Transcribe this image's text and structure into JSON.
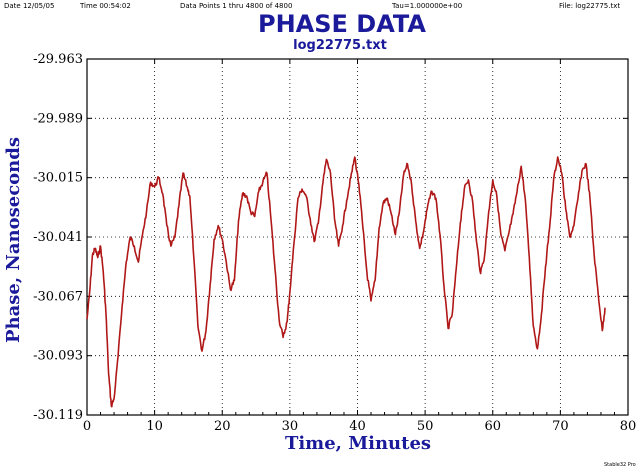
{
  "header": {
    "date": "Date  12/05/05",
    "time": "Time  00:54:02",
    "points": "Data Points 1 thru 4800 of 4800",
    "tau": "Tau=1.000000e+00",
    "file": "File: log22775.txt"
  },
  "credit": "Stable32 Pro",
  "chart_data": {
    "type": "line",
    "title": "PHASE DATA",
    "subtitle": "log22775.txt",
    "xlabel": "Time, Minutes",
    "ylabel": "Phase, Nanoseconds",
    "xlim": [
      0,
      80
    ],
    "ylim": [
      -30.119,
      -29.963
    ],
    "xticks": [
      "0",
      "10",
      "20",
      "30",
      "40",
      "50",
      "60",
      "70",
      "80"
    ],
    "yticks": [
      "-29.963",
      "-29.989",
      "-30.015",
      "-30.041",
      "-30.067",
      "-30.093",
      "-30.119"
    ],
    "grid": true,
    "line_color": "#b01818",
    "series": [
      {
        "x": [
          0.0,
          0.4,
          0.8,
          1.2,
          1.6,
          2.0,
          2.4,
          2.8,
          3.2,
          3.6,
          4.0,
          4.6,
          5.2,
          5.8,
          6.4,
          7.0,
          7.6,
          8.2,
          8.8,
          9.4,
          10.0,
          10.6,
          11.2,
          11.8,
          12.4,
          13.0,
          13.6,
          14.2,
          14.8,
          15.2,
          15.8,
          16.4,
          17.0,
          17.6,
          18.2,
          18.8,
          19.4,
          20.0,
          20.6,
          21.2,
          21.8,
          22.4,
          23.0,
          23.6,
          24.2,
          24.8,
          25.4,
          26.0,
          26.6,
          27.2,
          27.8,
          28.4,
          29.0,
          29.6,
          30.0,
          30.6,
          31.2,
          31.8,
          32.4,
          33.0,
          33.6,
          34.2,
          34.8,
          35.4,
          36.0,
          36.6,
          37.2,
          37.8,
          38.4,
          39.0,
          39.6,
          40.2,
          40.8,
          41.4,
          42.0,
          42.6,
          43.2,
          43.8,
          44.4,
          45.0,
          45.6,
          46.2,
          46.8,
          47.4,
          48.0,
          48.6,
          49.2,
          49.8,
          50.4,
          51.0,
          51.6,
          52.2,
          52.8,
          53.4,
          54.0,
          54.6,
          55.2,
          55.8,
          56.4,
          57.0,
          57.6,
          58.2,
          58.8,
          59.4,
          60.0,
          60.6,
          61.2,
          61.8,
          62.4,
          63.0,
          63.6,
          64.2,
          64.8,
          65.4,
          66.0,
          66.6,
          67.2,
          67.8,
          68.4,
          69.0,
          69.6,
          70.2,
          70.8,
          71.4,
          72.0,
          72.6,
          73.2,
          73.8,
          74.4,
          75.0,
          75.6,
          76.2,
          76.6
        ],
        "y": [
          -30.077,
          -30.065,
          -30.049,
          -30.046,
          -30.05,
          -30.045,
          -30.056,
          -30.074,
          -30.101,
          -30.115,
          -30.112,
          -30.093,
          -30.071,
          -30.052,
          -30.041,
          -30.045,
          -30.052,
          -30.04,
          -30.03,
          -30.017,
          -30.019,
          -30.015,
          -30.022,
          -30.036,
          -30.045,
          -30.041,
          -30.027,
          -30.013,
          -30.019,
          -30.023,
          -30.05,
          -30.08,
          -30.091,
          -30.082,
          -30.062,
          -30.042,
          -30.036,
          -30.042,
          -30.052,
          -30.064,
          -30.06,
          -30.034,
          -30.022,
          -30.023,
          -30.03,
          -30.032,
          -30.021,
          -30.017,
          -30.013,
          -30.033,
          -30.055,
          -30.077,
          -30.085,
          -30.078,
          -30.065,
          -30.044,
          -30.024,
          -30.02,
          -30.023,
          -30.033,
          -30.043,
          -30.035,
          -30.019,
          -30.007,
          -30.013,
          -30.033,
          -30.045,
          -30.036,
          -30.025,
          -30.015,
          -30.006,
          -30.018,
          -30.037,
          -30.057,
          -30.069,
          -30.06,
          -30.037,
          -30.026,
          -30.024,
          -30.031,
          -30.04,
          -30.03,
          -30.014,
          -30.009,
          -30.018,
          -30.034,
          -30.046,
          -30.038,
          -30.027,
          -30.021,
          -30.024,
          -30.04,
          -30.063,
          -30.081,
          -30.075,
          -30.055,
          -30.035,
          -30.02,
          -30.016,
          -30.025,
          -30.043,
          -30.057,
          -30.049,
          -30.03,
          -30.016,
          -30.023,
          -30.04,
          -30.047,
          -30.039,
          -30.031,
          -30.021,
          -30.01,
          -30.024,
          -30.05,
          -30.08,
          -30.09,
          -30.075,
          -30.054,
          -30.037,
          -30.016,
          -30.006,
          -30.013,
          -30.029,
          -30.041,
          -30.036,
          -30.024,
          -30.012,
          -30.009,
          -30.025,
          -30.049,
          -30.066,
          -30.082,
          -30.072
        ]
      }
    ]
  }
}
